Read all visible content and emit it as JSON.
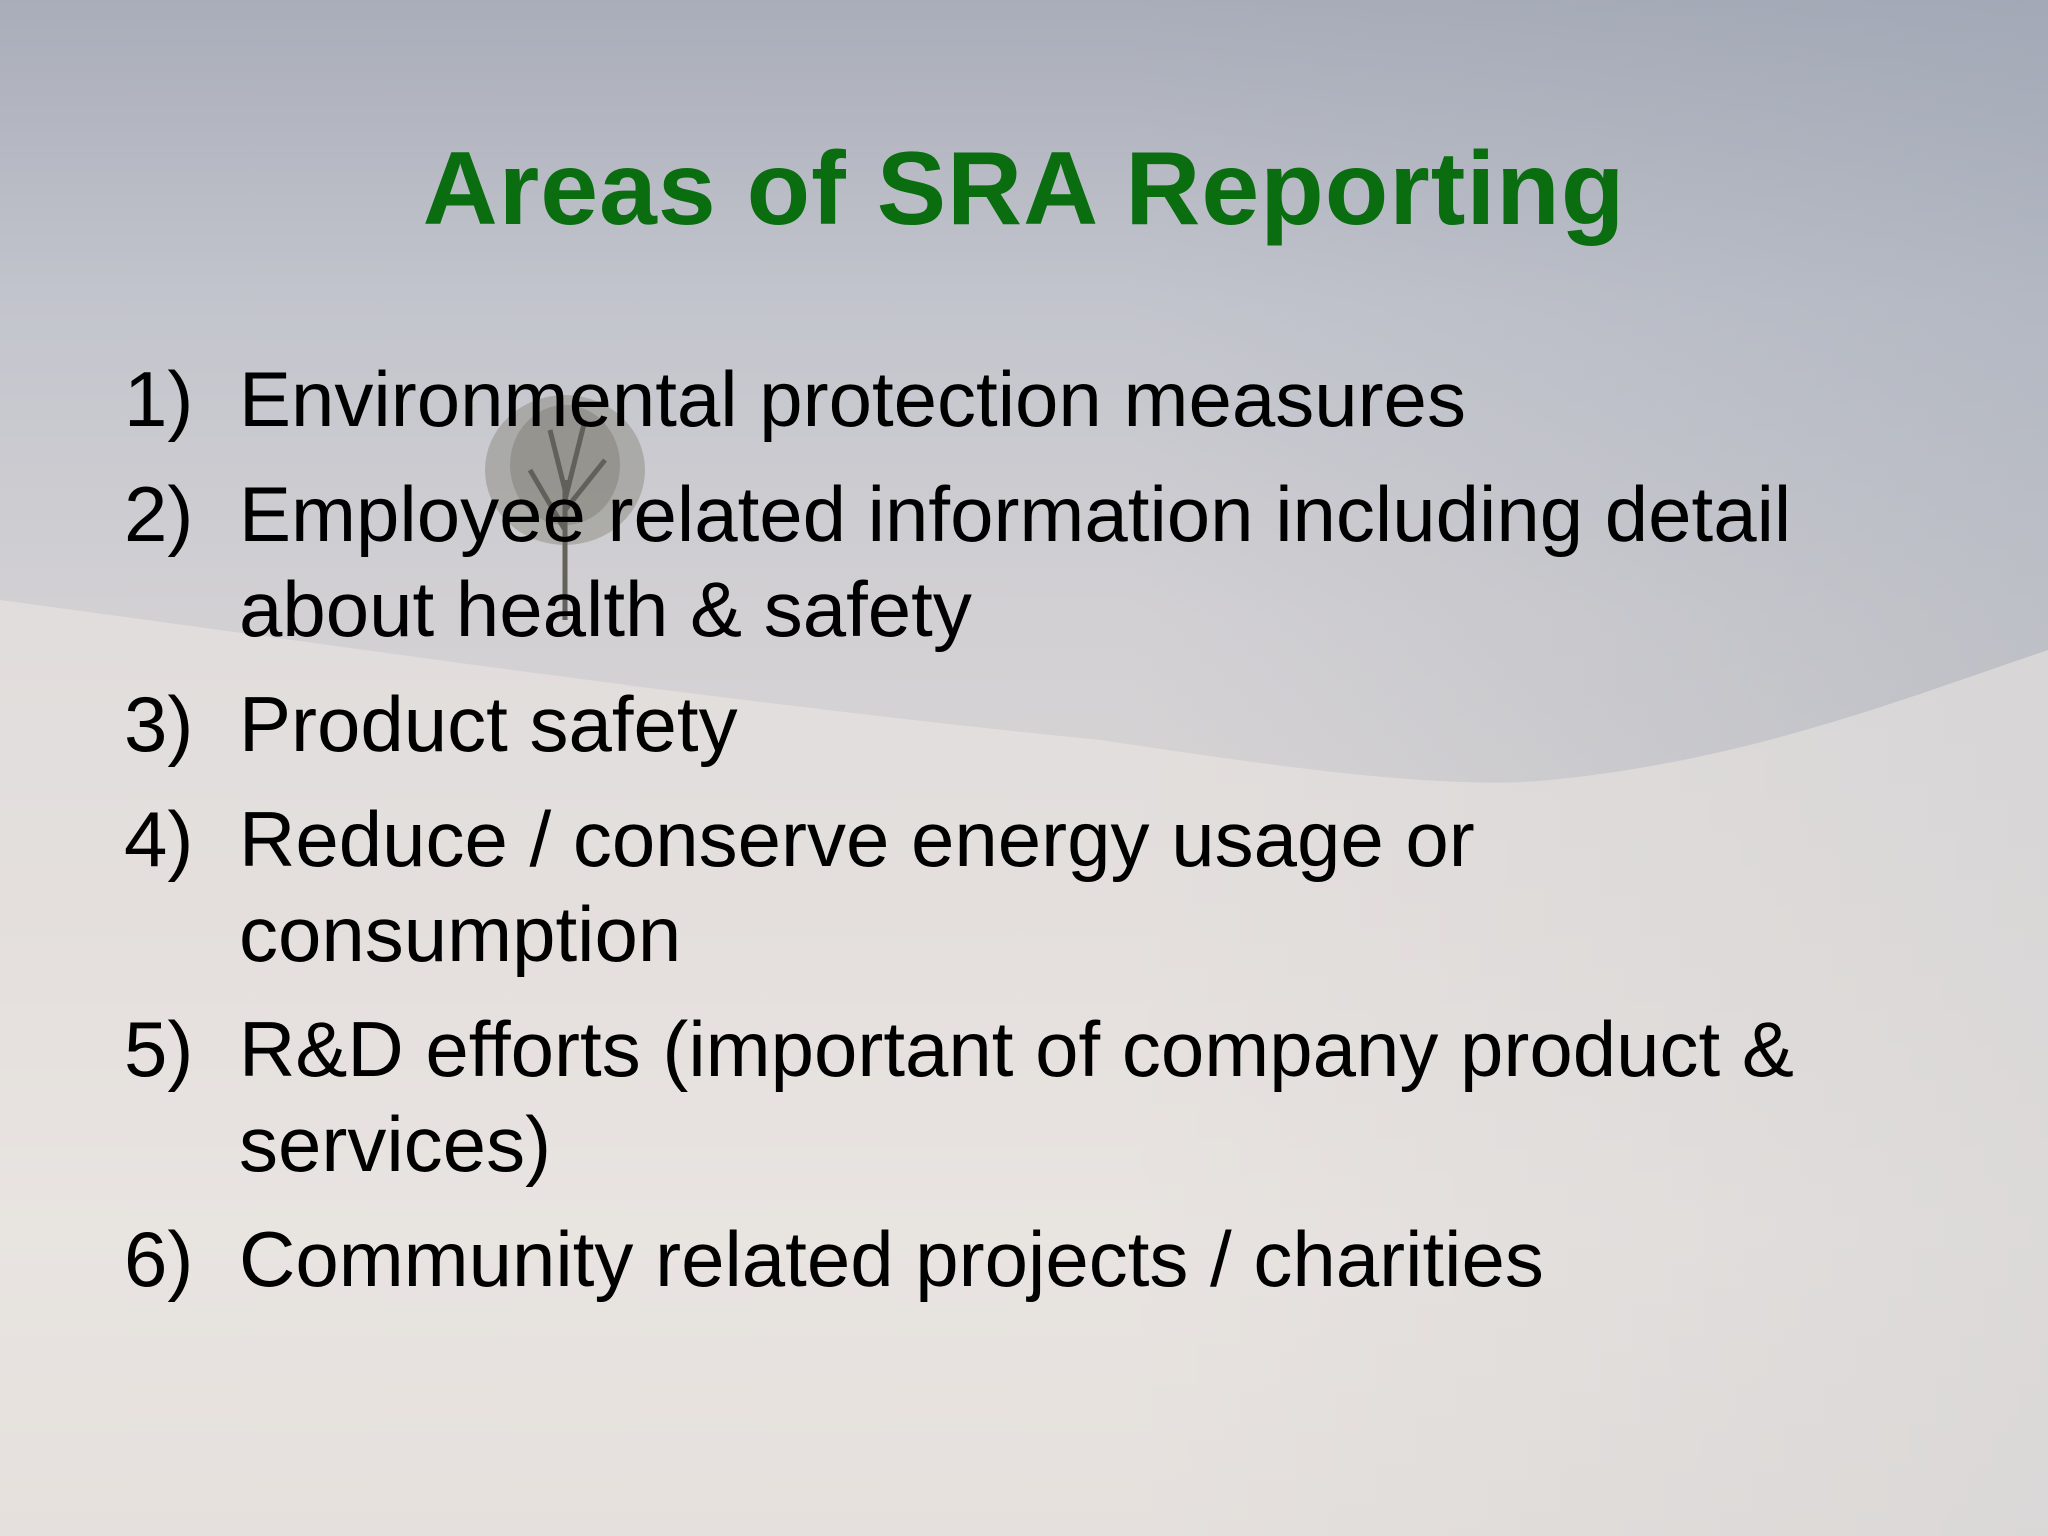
{
  "slide": {
    "title": "Areas of SRA Reporting",
    "title_color": "#0a6e10",
    "items": [
      {
        "number": "1)",
        "lines": [
          "Environmental protection measures"
        ]
      },
      {
        "number": "2)",
        "lines": [
          "Employee related information including detail",
          "about health & safety"
        ]
      },
      {
        "number": "3)",
        "lines": [
          "Product safety"
        ]
      },
      {
        "number": "4)",
        "lines": [
          "Reduce / conserve energy usage or",
          "consumption"
        ]
      },
      {
        "number": "5)",
        "lines": [
          "R&D efforts (important of company product &",
          "services)"
        ]
      },
      {
        "number": "6)",
        "lines": [
          "Community related projects / charities"
        ]
      }
    ]
  }
}
